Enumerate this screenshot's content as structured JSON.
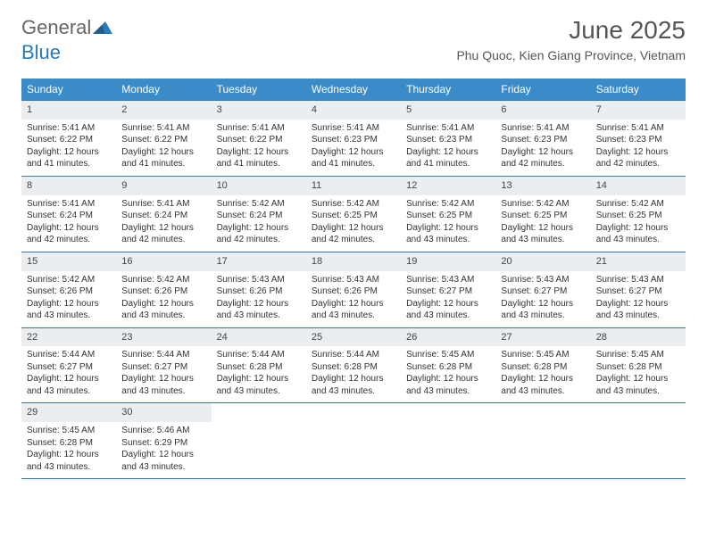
{
  "brand": {
    "word1": "General",
    "word2": "Blue",
    "color_general": "#666666",
    "color_blue": "#2a7ab8",
    "icon_color": "#2a7ab8"
  },
  "title": {
    "month_year": "June 2025",
    "location": "Phu Quoc, Kien Giang Province, Vietnam",
    "month_fontsize": 28,
    "location_fontsize": 14,
    "text_color": "#555555"
  },
  "calendar": {
    "header_bg": "#3b8bc8",
    "header_text_color": "#ffffff",
    "row_border_color": "#3b7aad",
    "daynum_bg": "#eaeef1",
    "cell_text_color": "#333333",
    "body_fontsize": 10,
    "days_of_week": [
      "Sunday",
      "Monday",
      "Tuesday",
      "Wednesday",
      "Thursday",
      "Friday",
      "Saturday"
    ],
    "weeks": [
      [
        {
          "n": "1",
          "sr": "Sunrise: 5:41 AM",
          "ss": "Sunset: 6:22 PM",
          "d1": "Daylight: 12 hours",
          "d2": "and 41 minutes."
        },
        {
          "n": "2",
          "sr": "Sunrise: 5:41 AM",
          "ss": "Sunset: 6:22 PM",
          "d1": "Daylight: 12 hours",
          "d2": "and 41 minutes."
        },
        {
          "n": "3",
          "sr": "Sunrise: 5:41 AM",
          "ss": "Sunset: 6:22 PM",
          "d1": "Daylight: 12 hours",
          "d2": "and 41 minutes."
        },
        {
          "n": "4",
          "sr": "Sunrise: 5:41 AM",
          "ss": "Sunset: 6:23 PM",
          "d1": "Daylight: 12 hours",
          "d2": "and 41 minutes."
        },
        {
          "n": "5",
          "sr": "Sunrise: 5:41 AM",
          "ss": "Sunset: 6:23 PM",
          "d1": "Daylight: 12 hours",
          "d2": "and 41 minutes."
        },
        {
          "n": "6",
          "sr": "Sunrise: 5:41 AM",
          "ss": "Sunset: 6:23 PM",
          "d1": "Daylight: 12 hours",
          "d2": "and 42 minutes."
        },
        {
          "n": "7",
          "sr": "Sunrise: 5:41 AM",
          "ss": "Sunset: 6:23 PM",
          "d1": "Daylight: 12 hours",
          "d2": "and 42 minutes."
        }
      ],
      [
        {
          "n": "8",
          "sr": "Sunrise: 5:41 AM",
          "ss": "Sunset: 6:24 PM",
          "d1": "Daylight: 12 hours",
          "d2": "and 42 minutes."
        },
        {
          "n": "9",
          "sr": "Sunrise: 5:41 AM",
          "ss": "Sunset: 6:24 PM",
          "d1": "Daylight: 12 hours",
          "d2": "and 42 minutes."
        },
        {
          "n": "10",
          "sr": "Sunrise: 5:42 AM",
          "ss": "Sunset: 6:24 PM",
          "d1": "Daylight: 12 hours",
          "d2": "and 42 minutes."
        },
        {
          "n": "11",
          "sr": "Sunrise: 5:42 AM",
          "ss": "Sunset: 6:25 PM",
          "d1": "Daylight: 12 hours",
          "d2": "and 42 minutes."
        },
        {
          "n": "12",
          "sr": "Sunrise: 5:42 AM",
          "ss": "Sunset: 6:25 PM",
          "d1": "Daylight: 12 hours",
          "d2": "and 43 minutes."
        },
        {
          "n": "13",
          "sr": "Sunrise: 5:42 AM",
          "ss": "Sunset: 6:25 PM",
          "d1": "Daylight: 12 hours",
          "d2": "and 43 minutes."
        },
        {
          "n": "14",
          "sr": "Sunrise: 5:42 AM",
          "ss": "Sunset: 6:25 PM",
          "d1": "Daylight: 12 hours",
          "d2": "and 43 minutes."
        }
      ],
      [
        {
          "n": "15",
          "sr": "Sunrise: 5:42 AM",
          "ss": "Sunset: 6:26 PM",
          "d1": "Daylight: 12 hours",
          "d2": "and 43 minutes."
        },
        {
          "n": "16",
          "sr": "Sunrise: 5:42 AM",
          "ss": "Sunset: 6:26 PM",
          "d1": "Daylight: 12 hours",
          "d2": "and 43 minutes."
        },
        {
          "n": "17",
          "sr": "Sunrise: 5:43 AM",
          "ss": "Sunset: 6:26 PM",
          "d1": "Daylight: 12 hours",
          "d2": "and 43 minutes."
        },
        {
          "n": "18",
          "sr": "Sunrise: 5:43 AM",
          "ss": "Sunset: 6:26 PM",
          "d1": "Daylight: 12 hours",
          "d2": "and 43 minutes."
        },
        {
          "n": "19",
          "sr": "Sunrise: 5:43 AM",
          "ss": "Sunset: 6:27 PM",
          "d1": "Daylight: 12 hours",
          "d2": "and 43 minutes."
        },
        {
          "n": "20",
          "sr": "Sunrise: 5:43 AM",
          "ss": "Sunset: 6:27 PM",
          "d1": "Daylight: 12 hours",
          "d2": "and 43 minutes."
        },
        {
          "n": "21",
          "sr": "Sunrise: 5:43 AM",
          "ss": "Sunset: 6:27 PM",
          "d1": "Daylight: 12 hours",
          "d2": "and 43 minutes."
        }
      ],
      [
        {
          "n": "22",
          "sr": "Sunrise: 5:44 AM",
          "ss": "Sunset: 6:27 PM",
          "d1": "Daylight: 12 hours",
          "d2": "and 43 minutes."
        },
        {
          "n": "23",
          "sr": "Sunrise: 5:44 AM",
          "ss": "Sunset: 6:27 PM",
          "d1": "Daylight: 12 hours",
          "d2": "and 43 minutes."
        },
        {
          "n": "24",
          "sr": "Sunrise: 5:44 AM",
          "ss": "Sunset: 6:28 PM",
          "d1": "Daylight: 12 hours",
          "d2": "and 43 minutes."
        },
        {
          "n": "25",
          "sr": "Sunrise: 5:44 AM",
          "ss": "Sunset: 6:28 PM",
          "d1": "Daylight: 12 hours",
          "d2": "and 43 minutes."
        },
        {
          "n": "26",
          "sr": "Sunrise: 5:45 AM",
          "ss": "Sunset: 6:28 PM",
          "d1": "Daylight: 12 hours",
          "d2": "and 43 minutes."
        },
        {
          "n": "27",
          "sr": "Sunrise: 5:45 AM",
          "ss": "Sunset: 6:28 PM",
          "d1": "Daylight: 12 hours",
          "d2": "and 43 minutes."
        },
        {
          "n": "28",
          "sr": "Sunrise: 5:45 AM",
          "ss": "Sunset: 6:28 PM",
          "d1": "Daylight: 12 hours",
          "d2": "and 43 minutes."
        }
      ],
      [
        {
          "n": "29",
          "sr": "Sunrise: 5:45 AM",
          "ss": "Sunset: 6:28 PM",
          "d1": "Daylight: 12 hours",
          "d2": "and 43 minutes."
        },
        {
          "n": "30",
          "sr": "Sunrise: 5:46 AM",
          "ss": "Sunset: 6:29 PM",
          "d1": "Daylight: 12 hours",
          "d2": "and 43 minutes."
        },
        null,
        null,
        null,
        null,
        null
      ]
    ]
  }
}
